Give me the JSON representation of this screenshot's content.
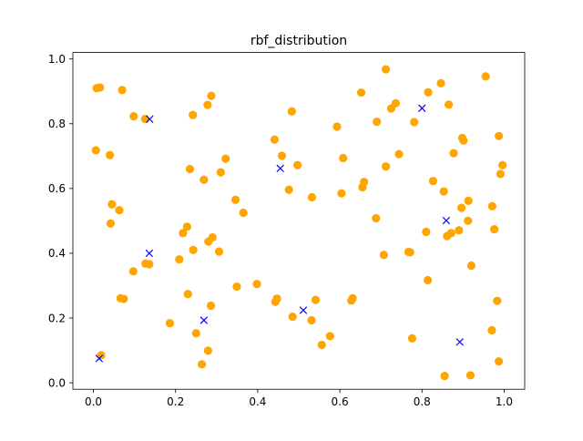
{
  "chart_data": {
    "type": "scatter",
    "title": "rbf_distribution",
    "xlabel": "",
    "ylabel": "",
    "xlim": [
      -0.05,
      1.05
    ],
    "ylim": [
      -0.02,
      1.02
    ],
    "xticks": [
      0.0,
      0.2,
      0.4,
      0.6,
      0.8,
      1.0
    ],
    "yticks": [
      0.0,
      0.2,
      0.4,
      0.6,
      0.8,
      1.0
    ],
    "xtick_labels": [
      "0.0",
      "0.2",
      "0.4",
      "0.6",
      "0.8",
      "1.0"
    ],
    "ytick_labels": [
      "0.0",
      "0.2",
      "0.4",
      "0.6",
      "0.8",
      "1.0"
    ],
    "grid": false,
    "legend": false,
    "series": [
      {
        "marker": "circle",
        "color": "#ffa500",
        "points": [
          [
            0.008,
            0.91
          ],
          [
            0.016,
            0.912
          ],
          [
            0.07,
            0.904
          ],
          [
            0.006,
            0.718
          ],
          [
            0.04,
            0.703
          ],
          [
            0.098,
            0.823
          ],
          [
            0.126,
            0.815
          ],
          [
            0.242,
            0.827
          ],
          [
            0.278,
            0.858
          ],
          [
            0.287,
            0.886
          ],
          [
            0.045,
            0.551
          ],
          [
            0.063,
            0.533
          ],
          [
            0.042,
            0.492
          ],
          [
            0.235,
            0.66
          ],
          [
            0.269,
            0.627
          ],
          [
            0.31,
            0.65
          ],
          [
            0.322,
            0.692
          ],
          [
            0.346,
            0.565
          ],
          [
            0.365,
            0.525
          ],
          [
            0.218,
            0.462
          ],
          [
            0.228,
            0.482
          ],
          [
            0.28,
            0.436
          ],
          [
            0.29,
            0.449
          ],
          [
            0.243,
            0.41
          ],
          [
            0.306,
            0.405
          ],
          [
            0.209,
            0.381
          ],
          [
            0.127,
            0.368
          ],
          [
            0.136,
            0.366
          ],
          [
            0.097,
            0.344
          ],
          [
            0.066,
            0.261
          ],
          [
            0.074,
            0.259
          ],
          [
            0.23,
            0.274
          ],
          [
            0.286,
            0.238
          ],
          [
            0.186,
            0.184
          ],
          [
            0.25,
            0.153
          ],
          [
            0.279,
            0.099
          ],
          [
            0.264,
            0.057
          ],
          [
            0.019,
            0.085
          ],
          [
            0.349,
            0.297
          ],
          [
            0.398,
            0.305
          ],
          [
            0.441,
            0.751
          ],
          [
            0.459,
            0.701
          ],
          [
            0.483,
            0.838
          ],
          [
            0.497,
            0.672
          ],
          [
            0.476,
            0.596
          ],
          [
            0.532,
            0.573
          ],
          [
            0.447,
            0.26
          ],
          [
            0.443,
            0.25
          ],
          [
            0.485,
            0.204
          ],
          [
            0.531,
            0.193
          ],
          [
            0.541,
            0.256
          ],
          [
            0.576,
            0.144
          ],
          [
            0.556,
            0.117
          ],
          [
            0.593,
            0.791
          ],
          [
            0.608,
            0.694
          ],
          [
            0.604,
            0.585
          ],
          [
            0.652,
            0.896
          ],
          [
            0.69,
            0.806
          ],
          [
            0.725,
            0.847
          ],
          [
            0.736,
            0.863
          ],
          [
            0.712,
            0.968
          ],
          [
            0.655,
            0.604
          ],
          [
            0.659,
            0.62
          ],
          [
            0.712,
            0.668
          ],
          [
            0.744,
            0.706
          ],
          [
            0.688,
            0.508
          ],
          [
            0.707,
            0.395
          ],
          [
            0.767,
            0.404
          ],
          [
            0.771,
            0.403
          ],
          [
            0.628,
            0.254
          ],
          [
            0.631,
            0.261
          ],
          [
            0.776,
            0.137
          ],
          [
            0.781,
            0.805
          ],
          [
            0.815,
            0.897
          ],
          [
            0.846,
            0.925
          ],
          [
            0.865,
            0.859
          ],
          [
            0.827,
            0.623
          ],
          [
            0.853,
            0.591
          ],
          [
            0.877,
            0.709
          ],
          [
            0.898,
            0.756
          ],
          [
            0.901,
            0.748
          ],
          [
            0.955,
            0.946
          ],
          [
            0.987,
            0.762
          ],
          [
            0.991,
            0.645
          ],
          [
            0.996,
            0.672
          ],
          [
            0.896,
            0.54
          ],
          [
            0.913,
            0.562
          ],
          [
            0.971,
            0.545
          ],
          [
            0.81,
            0.466
          ],
          [
            0.861,
            0.453
          ],
          [
            0.871,
            0.462
          ],
          [
            0.89,
            0.471
          ],
          [
            0.912,
            0.5
          ],
          [
            0.976,
            0.474
          ],
          [
            0.814,
            0.317
          ],
          [
            0.92,
            0.362
          ],
          [
            0.983,
            0.253
          ],
          [
            0.97,
            0.162
          ],
          [
            0.855,
            0.021
          ],
          [
            0.918,
            0.023
          ],
          [
            0.987,
            0.066
          ]
        ]
      },
      {
        "marker": "x",
        "color": "#0000ff",
        "points": [
          [
            0.137,
            0.814
          ],
          [
            0.014,
            0.075
          ],
          [
            0.136,
            0.4
          ],
          [
            0.269,
            0.193
          ],
          [
            0.455,
            0.662
          ],
          [
            0.511,
            0.224
          ],
          [
            0.8,
            0.848
          ],
          [
            0.859,
            0.501
          ],
          [
            0.892,
            0.126
          ]
        ]
      }
    ]
  }
}
